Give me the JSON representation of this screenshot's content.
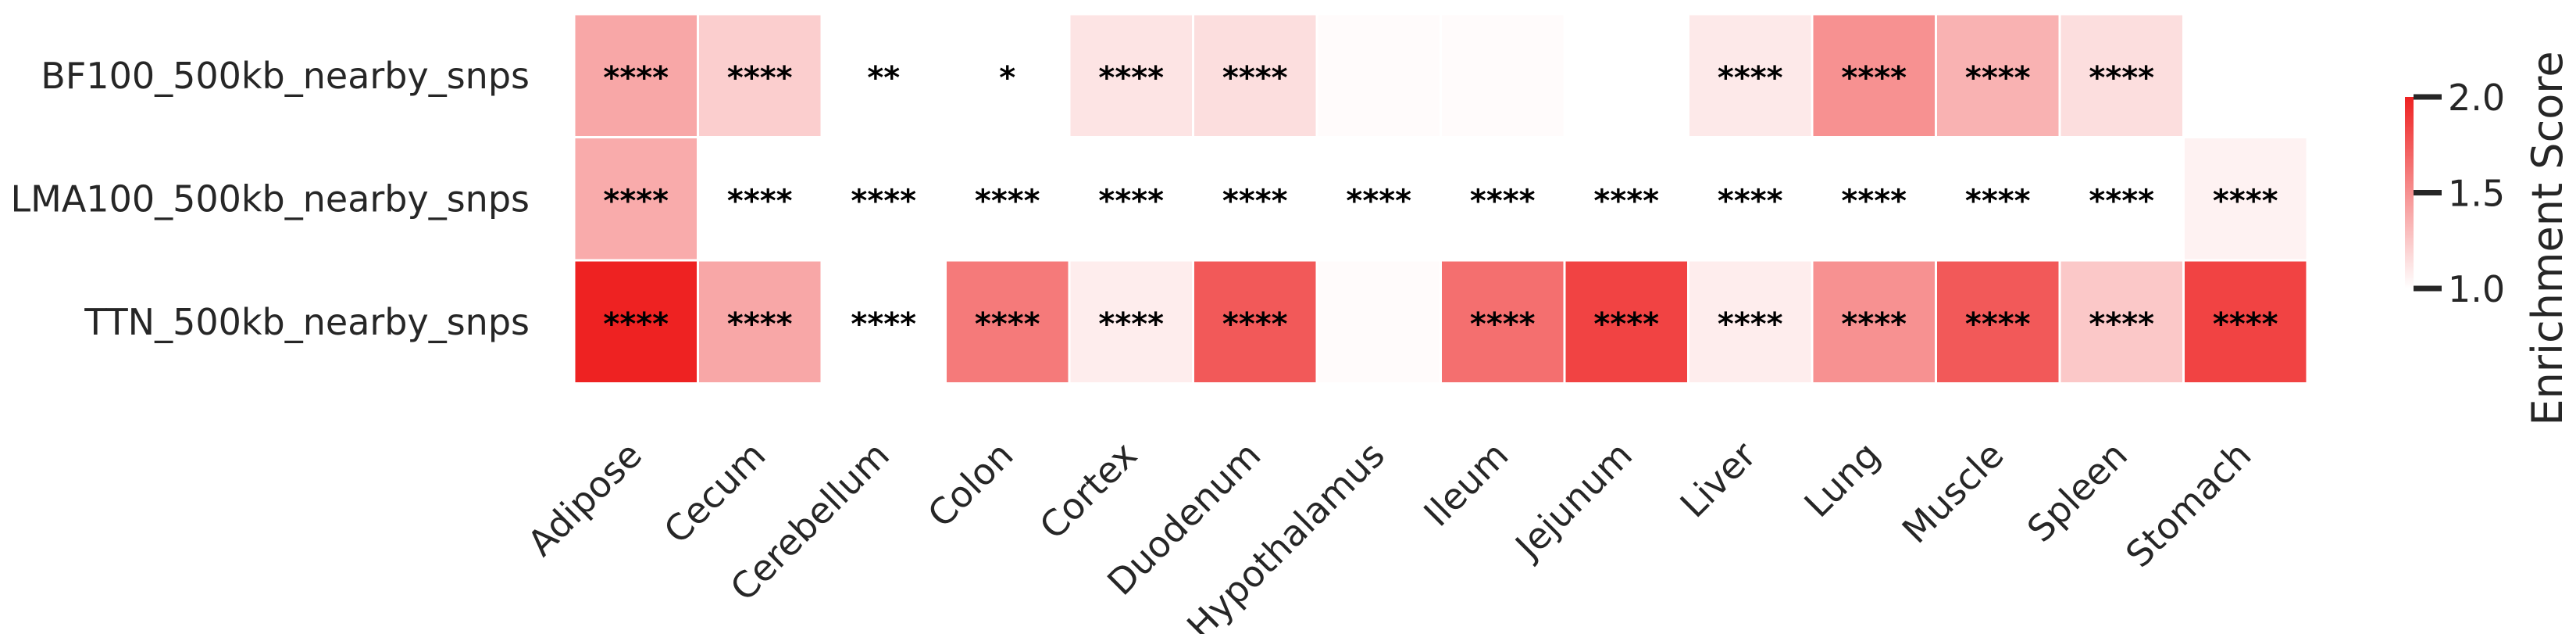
{
  "chart_data": {
    "type": "heatmap",
    "columns": [
      "Adipose",
      "Cecum",
      "Cerebellum",
      "Colon",
      "Cortex",
      "Duodenum",
      "Hypothalamus",
      "Ileum",
      "Jejunum",
      "Liver",
      "Lung",
      "Muscle",
      "Spleen",
      "Stomach"
    ],
    "rows": [
      {
        "label": "BF100_500kb_nearby_snps",
        "values": [
          1.4,
          1.22,
          null,
          null,
          1.12,
          1.15,
          1.02,
          1.02,
          null,
          1.1,
          1.5,
          1.35,
          1.15,
          null
        ],
        "stars": [
          "****",
          "****",
          "**",
          "*",
          "****",
          "****",
          "",
          "",
          "",
          "****",
          "****",
          "****",
          "****",
          ""
        ]
      },
      {
        "label": "LMA100_500kb_nearby_snps",
        "values": [
          1.38,
          null,
          null,
          null,
          null,
          null,
          null,
          null,
          null,
          null,
          null,
          null,
          null,
          1.06
        ],
        "stars": [
          "****",
          "****",
          "****",
          "****",
          "****",
          "****",
          "****",
          "****",
          "****",
          "****",
          "****",
          "****",
          "****",
          "****"
        ]
      },
      {
        "label": "TTN_500kb_nearby_snps",
        "values": [
          2.0,
          1.4,
          null,
          1.6,
          1.08,
          1.75,
          1.02,
          1.65,
          1.85,
          1.08,
          1.5,
          1.75,
          1.25,
          1.85
        ],
        "stars": [
          "****",
          "****",
          "****",
          "****",
          "****",
          "****",
          "",
          "****",
          "****",
          "****",
          "****",
          "****",
          "****",
          "****"
        ]
      }
    ],
    "colorbar": {
      "title": "Enrichment Score",
      "ticks": [
        "2.0",
        "1.5",
        "1.0"
      ],
      "range": [
        1.0,
        2.0
      ],
      "color_low": "#ffffff",
      "color_high": "#ee2222"
    }
  }
}
